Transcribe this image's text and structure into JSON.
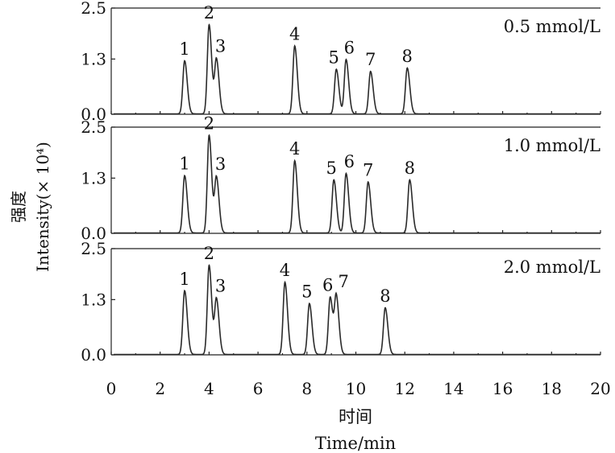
{
  "chart_data": {
    "type": "line",
    "xlabel_cn": "时间",
    "xlabel": "Time/min",
    "ylabel_cn": "强度",
    "ylabel": "Intensity(× 10⁴)",
    "xlim": [
      0,
      20
    ],
    "x_ticks": [
      "0",
      "2",
      "4",
      "6",
      "8",
      "10",
      "12",
      "14",
      "16",
      "18",
      "20"
    ],
    "ylim": [
      0,
      2.5
    ],
    "y_ticks": [
      "0.0",
      "1.3",
      "2.5"
    ],
    "grid": false,
    "panels": [
      {
        "concentration_label": "0.5 mmol/L",
        "peaks": [
          {
            "label": "1",
            "time": 3.0,
            "height": 1.25
          },
          {
            "label": "2",
            "time": 4.0,
            "height": 2.1
          },
          {
            "label": "3",
            "time": 4.3,
            "height": 1.28
          },
          {
            "label": "4",
            "time": 7.5,
            "height": 1.6
          },
          {
            "label": "5",
            "time": 9.2,
            "height": 1.05
          },
          {
            "label": "6",
            "time": 9.6,
            "height": 1.28
          },
          {
            "label": "7",
            "time": 10.6,
            "height": 1.0
          },
          {
            "label": "8",
            "time": 12.1,
            "height": 1.08
          }
        ]
      },
      {
        "concentration_label": "1.0 mmol/L",
        "peaks": [
          {
            "label": "1",
            "time": 3.0,
            "height": 1.35
          },
          {
            "label": "2",
            "time": 4.0,
            "height": 2.3
          },
          {
            "label": "3",
            "time": 4.3,
            "height": 1.3
          },
          {
            "label": "4",
            "time": 7.5,
            "height": 1.7
          },
          {
            "label": "5",
            "time": 9.1,
            "height": 1.25
          },
          {
            "label": "6",
            "time": 9.6,
            "height": 1.4
          },
          {
            "label": "7",
            "time": 10.5,
            "height": 1.2
          },
          {
            "label": "8",
            "time": 12.2,
            "height": 1.25
          }
        ]
      },
      {
        "concentration_label": "2.0 mmol/L",
        "peaks": [
          {
            "label": "1",
            "time": 3.0,
            "height": 1.5
          },
          {
            "label": "2",
            "time": 4.0,
            "height": 2.1
          },
          {
            "label": "3",
            "time": 4.3,
            "height": 1.3
          },
          {
            "label": "4",
            "time": 7.1,
            "height": 1.7
          },
          {
            "label": "5",
            "time": 8.1,
            "height": 1.2
          },
          {
            "label": "6",
            "time": 8.95,
            "height": 1.35
          },
          {
            "label": "7",
            "time": 9.2,
            "height": 1.35
          },
          {
            "label": "8",
            "time": 11.2,
            "height": 1.1
          }
        ]
      }
    ]
  }
}
